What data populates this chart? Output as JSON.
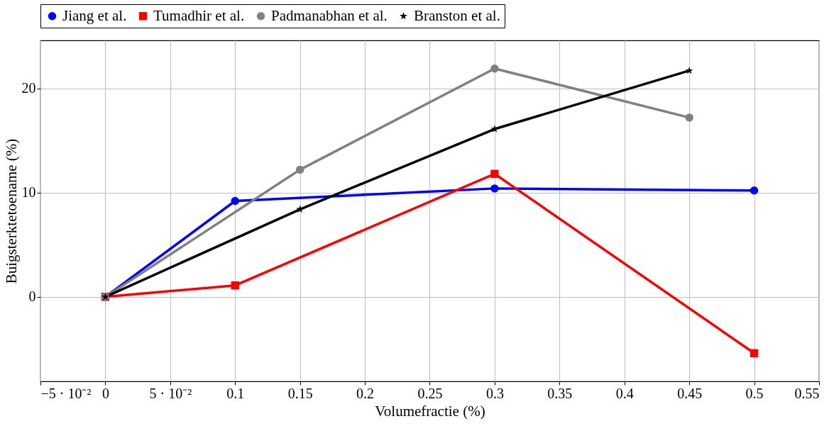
{
  "chart_data": {
    "type": "line",
    "xlabel": "Volumefractie (%)",
    "ylabel": "Buigsterktetoename (%)",
    "xlim": [
      -0.05,
      0.55
    ],
    "xticks": [
      {
        "value": -0.05,
        "label": "−5 · 10⁻²"
      },
      0,
      {
        "value": 0.05,
        "label": "5 · 10⁻²"
      },
      0.1,
      0.15,
      0.2,
      0.25,
      0.3,
      0.35,
      0.4,
      0.45,
      0.5,
      0.55
    ],
    "ylim": [
      -8.1,
      24.6
    ],
    "yticks": [
      0,
      10,
      20
    ],
    "grid": true,
    "legend": "top",
    "line_style": "solid",
    "series": [
      {
        "name": "Jiang et al.",
        "color": "#0000ff",
        "marker": "circle",
        "x": [
          0,
          0.1,
          0.3,
          0.5
        ],
        "values": [
          0,
          9.2,
          10.4,
          10.2
        ]
      },
      {
        "name": "Tumadhir et al.",
        "color": "#ff0000",
        "marker": "square",
        "x": [
          0,
          0.1,
          0.3,
          0.5
        ],
        "values": [
          0,
          1.1,
          11.8,
          -5.4
        ]
      },
      {
        "name": "Padmanabhan et al.",
        "color": "#808080",
        "marker": "circle",
        "x": [
          0,
          0.15,
          0.3,
          0.45
        ],
        "values": [
          0,
          12.2,
          21.9,
          17.2
        ]
      },
      {
        "name": "Branston et al.",
        "color": "#000000",
        "marker": "star",
        "x": [
          0,
          0.15,
          0.3,
          0.45
        ],
        "values": [
          0,
          8.4,
          16.1,
          21.7
        ]
      }
    ]
  }
}
